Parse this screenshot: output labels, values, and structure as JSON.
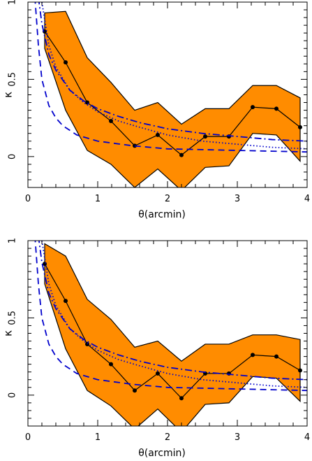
{
  "chart_data": [
    {
      "type": "line",
      "xlabel": "θ(arcmin)",
      "ylabel": "κ",
      "xlim": [
        0,
        4
      ],
      "ylim": [
        -0.2,
        1.0
      ],
      "x_ticks": [
        "0",
        "1",
        "2",
        "3",
        "4"
      ],
      "y_ticks": [
        "0",
        "0.5",
        "1"
      ],
      "grid": false,
      "series": [
        {
          "style": "band",
          "color": "#ff8c00",
          "x": [
            0.24,
            0.54,
            0.85,
            1.19,
            1.53,
            1.86,
            2.2,
            2.54,
            2.88,
            3.22,
            3.56,
            3.9
          ],
          "upper": [
            0.93,
            0.94,
            0.64,
            0.48,
            0.3,
            0.35,
            0.21,
            0.31,
            0.31,
            0.46,
            0.46,
            0.38
          ],
          "lower": [
            0.7,
            0.3,
            0.04,
            -0.05,
            -0.2,
            -0.08,
            -0.22,
            -0.07,
            -0.06,
            0.15,
            0.14,
            -0.03
          ]
        },
        {
          "style": "markers-line",
          "color": "#000000",
          "x": [
            0.24,
            0.54,
            0.85,
            1.19,
            1.53,
            1.86,
            2.2,
            2.54,
            2.88,
            3.22,
            3.56,
            3.9
          ],
          "y": [
            0.81,
            0.61,
            0.35,
            0.23,
            0.07,
            0.14,
            0.01,
            0.13,
            0.13,
            0.32,
            0.31,
            0.19
          ]
        },
        {
          "style": "dashdot",
          "color": "#0000cc",
          "x": [
            0.15,
            0.2,
            0.3,
            0.4,
            0.6,
            0.8,
            1.0,
            1.3,
            1.6,
            2.0,
            2.5,
            3.0,
            3.5,
            4.0
          ],
          "y": [
            1.03,
            0.86,
            0.66,
            0.56,
            0.43,
            0.36,
            0.31,
            0.26,
            0.22,
            0.18,
            0.15,
            0.13,
            0.11,
            0.1
          ]
        },
        {
          "style": "dotted",
          "color": "#0000cc",
          "x": [
            0.2,
            0.3,
            0.4,
            0.6,
            0.8,
            1.0,
            1.3,
            1.6,
            2.0,
            2.5,
            3.0,
            3.5,
            4.0
          ],
          "y": [
            1.0,
            0.72,
            0.58,
            0.43,
            0.35,
            0.29,
            0.23,
            0.19,
            0.14,
            0.1,
            0.08,
            0.06,
            0.05
          ]
        },
        {
          "style": "dashed",
          "color": "#0000cc",
          "x": [
            0.1,
            0.15,
            0.2,
            0.3,
            0.4,
            0.5,
            0.7,
            1.0,
            1.5,
            2.0,
            2.5,
            3.0,
            3.5,
            4.0
          ],
          "y": [
            1.03,
            0.72,
            0.5,
            0.33,
            0.25,
            0.2,
            0.14,
            0.1,
            0.07,
            0.05,
            0.045,
            0.04,
            0.035,
            0.03
          ]
        }
      ]
    },
    {
      "type": "line",
      "xlabel": "θ(arcmin)",
      "ylabel": "κ",
      "xlim": [
        0,
        4
      ],
      "ylim": [
        -0.2,
        1.0
      ],
      "x_ticks": [
        "0",
        "1",
        "2",
        "3",
        "4"
      ],
      "y_ticks": [
        "0",
        "0.5",
        "1"
      ],
      "grid": false,
      "series": [
        {
          "style": "band",
          "color": "#ff8c00",
          "x": [
            0.24,
            0.54,
            0.85,
            1.19,
            1.53,
            1.86,
            2.2,
            2.54,
            2.88,
            3.22,
            3.56,
            3.9
          ],
          "upper": [
            0.98,
            0.9,
            0.62,
            0.49,
            0.31,
            0.35,
            0.22,
            0.33,
            0.33,
            0.39,
            0.39,
            0.36
          ],
          "lower": [
            0.72,
            0.3,
            0.03,
            -0.07,
            -0.22,
            -0.09,
            -0.24,
            -0.06,
            -0.05,
            0.12,
            0.11,
            -0.04
          ]
        },
        {
          "style": "markers-line",
          "color": "#000000",
          "x": [
            0.24,
            0.54,
            0.85,
            1.19,
            1.53,
            1.86,
            2.2,
            2.54,
            2.88,
            3.22,
            3.56,
            3.9
          ],
          "y": [
            0.85,
            0.61,
            0.33,
            0.2,
            0.03,
            0.14,
            -0.02,
            0.14,
            0.14,
            0.26,
            0.25,
            0.16
          ]
        },
        {
          "style": "dashdot",
          "color": "#0000cc",
          "x": [
            0.15,
            0.2,
            0.3,
            0.4,
            0.6,
            0.8,
            1.0,
            1.3,
            1.6,
            2.0,
            2.5,
            3.0,
            3.5,
            4.0
          ],
          "y": [
            1.03,
            0.86,
            0.66,
            0.56,
            0.43,
            0.36,
            0.31,
            0.26,
            0.22,
            0.18,
            0.15,
            0.13,
            0.11,
            0.1
          ]
        },
        {
          "style": "dotted",
          "color": "#0000cc",
          "x": [
            0.2,
            0.3,
            0.4,
            0.6,
            0.8,
            1.0,
            1.3,
            1.6,
            2.0,
            2.5,
            3.0,
            3.5,
            4.0
          ],
          "y": [
            1.0,
            0.72,
            0.58,
            0.43,
            0.35,
            0.29,
            0.23,
            0.19,
            0.14,
            0.1,
            0.08,
            0.06,
            0.05
          ]
        },
        {
          "style": "dashed",
          "color": "#0000cc",
          "x": [
            0.1,
            0.15,
            0.2,
            0.3,
            0.4,
            0.5,
            0.7,
            1.0,
            1.5,
            2.0,
            2.5,
            3.0,
            3.5,
            4.0
          ],
          "y": [
            1.03,
            0.72,
            0.5,
            0.33,
            0.25,
            0.2,
            0.14,
            0.1,
            0.07,
            0.05,
            0.045,
            0.04,
            0.035,
            0.03
          ]
        }
      ]
    }
  ]
}
